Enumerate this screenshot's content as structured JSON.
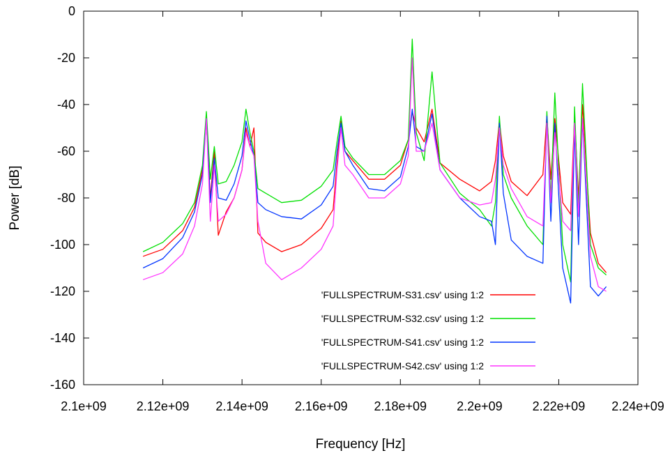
{
  "chart_data": {
    "type": "line",
    "xlabel": "Frequency [Hz]",
    "ylabel": "Power [dB]",
    "xlim": [
      2100000000,
      2240000000
    ],
    "ylim": [
      -160,
      0
    ],
    "x_ticks": [
      "2.1e+09",
      "2.12e+09",
      "2.14e+09",
      "2.16e+09",
      "2.18e+09",
      "2.2e+09",
      "2.22e+09",
      "2.24e+09"
    ],
    "y_ticks": [
      "0",
      "-20",
      "-40",
      "-60",
      "-80",
      "-100",
      "-120",
      "-140",
      "-160"
    ],
    "legend_position": "bottom-center",
    "series": [
      {
        "name": "'FULLSPECTRUM-S31.csv' using 1:2",
        "color": "#ff0000",
        "x": [
          2115000000,
          2120000000,
          2125000000,
          2128000000,
          2130000000,
          2131000000,
          2132000000,
          2133000000,
          2134000000,
          2136000000,
          2138000000,
          2140000000,
          2141000000,
          2142000000,
          2143000000,
          2144000000,
          2146000000,
          2150000000,
          2155000000,
          2160000000,
          2163000000,
          2164000000,
          2165000000,
          2166000000,
          2168000000,
          2172000000,
          2176000000,
          2180000000,
          2182000000,
          2183000000,
          2184000000,
          2186000000,
          2188000000,
          2190000000,
          2195000000,
          2200000000,
          2203000000,
          2204000000,
          2205000000,
          2206000000,
          2208000000,
          2212000000,
          2216000000,
          2217000000,
          2218000000,
          2219000000,
          2221000000,
          2223000000,
          2224000000,
          2225000000,
          2226000000,
          2228000000,
          2230000000,
          2232000000
        ],
        "y": [
          -105,
          -102,
          -94,
          -84,
          -68,
          -47,
          -80,
          -60,
          -96,
          -86,
          -80,
          -68,
          -50,
          -58,
          -50,
          -95,
          -99,
          -103,
          -100,
          -93,
          -85,
          -65,
          -47,
          -60,
          -64,
          -72,
          -72,
          -66,
          -55,
          -43,
          -50,
          -56,
          -42,
          -65,
          -72,
          -77,
          -73,
          -64,
          -47,
          -62,
          -73,
          -79,
          -70,
          -45,
          -72,
          -46,
          -82,
          -87,
          -45,
          -80,
          -40,
          -95,
          -108,
          -112
        ]
      },
      {
        "name": "'FULLSPECTRUM-S32.csv' using 1:2",
        "color": "#00e000",
        "x": [
          2115000000,
          2120000000,
          2125000000,
          2128000000,
          2130000000,
          2131000000,
          2132000000,
          2133000000,
          2134000000,
          2136000000,
          2138000000,
          2140000000,
          2141000000,
          2142000000,
          2143000000,
          2144000000,
          2146000000,
          2150000000,
          2155000000,
          2160000000,
          2163000000,
          2164000000,
          2165000000,
          2166000000,
          2168000000,
          2172000000,
          2176000000,
          2180000000,
          2182000000,
          2183000000,
          2184000000,
          2186000000,
          2188000000,
          2190000000,
          2195000000,
          2200000000,
          2203000000,
          2204000000,
          2205000000,
          2206000000,
          2208000000,
          2212000000,
          2216000000,
          2217000000,
          2218000000,
          2219000000,
          2221000000,
          2223000000,
          2224000000,
          2225000000,
          2226000000,
          2228000000,
          2230000000,
          2232000000
        ],
        "y": [
          -103,
          -99,
          -91,
          -82,
          -66,
          -43,
          -72,
          -58,
          -74,
          -73,
          -66,
          -56,
          -42,
          -52,
          -60,
          -76,
          -78,
          -82,
          -81,
          -75,
          -68,
          -56,
          -45,
          -58,
          -63,
          -70,
          -70,
          -64,
          -55,
          -12,
          -52,
          -64,
          -26,
          -65,
          -78,
          -85,
          -92,
          -82,
          -45,
          -70,
          -80,
          -92,
          -100,
          -43,
          -80,
          -35,
          -100,
          -116,
          -41,
          -85,
          -31,
          -100,
          -110,
          -113
        ]
      },
      {
        "name": "'FULLSPECTRUM-S41.csv' using 1:2",
        "color": "#0033ff",
        "x": [
          2115000000,
          2120000000,
          2125000000,
          2128000000,
          2130000000,
          2131000000,
          2132000000,
          2133000000,
          2134000000,
          2136000000,
          2138000000,
          2140000000,
          2141000000,
          2142000000,
          2143000000,
          2144000000,
          2146000000,
          2150000000,
          2155000000,
          2160000000,
          2163000000,
          2164000000,
          2165000000,
          2166000000,
          2168000000,
          2172000000,
          2176000000,
          2180000000,
          2182000000,
          2183000000,
          2184000000,
          2186000000,
          2188000000,
          2190000000,
          2195000000,
          2200000000,
          2203000000,
          2204000000,
          2205000000,
          2206000000,
          2208000000,
          2212000000,
          2216000000,
          2217000000,
          2218000000,
          2219000000,
          2221000000,
          2223000000,
          2224000000,
          2225000000,
          2226000000,
          2228000000,
          2230000000,
          2232000000
        ],
        "y": [
          -110,
          -106,
          -97,
          -86,
          -70,
          -46,
          -82,
          -63,
          -80,
          -81,
          -74,
          -62,
          -47,
          -55,
          -62,
          -82,
          -85,
          -88,
          -89,
          -83,
          -75,
          -60,
          -48,
          -60,
          -66,
          -76,
          -77,
          -71,
          -58,
          -42,
          -58,
          -60,
          -44,
          -68,
          -80,
          -88,
          -90,
          -100,
          -48,
          -78,
          -98,
          -105,
          -108,
          -45,
          -90,
          -48,
          -110,
          -125,
          -50,
          -100,
          -46,
          -118,
          -122,
          -118
        ]
      },
      {
        "name": "'FULLSPECTRUM-S42.csv' using 1:2",
        "color": "#ff33ff",
        "x": [
          2115000000,
          2120000000,
          2125000000,
          2128000000,
          2130000000,
          2131000000,
          2132000000,
          2133000000,
          2134000000,
          2136000000,
          2138000000,
          2140000000,
          2141000000,
          2142000000,
          2143000000,
          2144000000,
          2146000000,
          2150000000,
          2155000000,
          2160000000,
          2163000000,
          2164000000,
          2165000000,
          2166000000,
          2168000000,
          2172000000,
          2176000000,
          2180000000,
          2182000000,
          2183000000,
          2184000000,
          2186000000,
          2188000000,
          2190000000,
          2195000000,
          2200000000,
          2203000000,
          2204000000,
          2205000000,
          2206000000,
          2208000000,
          2212000000,
          2216000000,
          2217000000,
          2218000000,
          2219000000,
          2221000000,
          2223000000,
          2224000000,
          2225000000,
          2226000000,
          2228000000,
          2230000000,
          2232000000
        ],
        "y": [
          -115,
          -112,
          -104,
          -92,
          -74,
          -46,
          -90,
          -66,
          -90,
          -87,
          -80,
          -68,
          -52,
          -58,
          -62,
          -90,
          -108,
          -115,
          -110,
          -102,
          -92,
          -68,
          -50,
          -66,
          -70,
          -80,
          -80,
          -74,
          -62,
          -20,
          -60,
          -60,
          -48,
          -68,
          -80,
          -83,
          -82,
          -72,
          -50,
          -66,
          -76,
          -88,
          -92,
          -48,
          -82,
          -52,
          -90,
          -94,
          -48,
          -88,
          -46,
          -105,
          -118,
          -120
        ]
      }
    ]
  }
}
